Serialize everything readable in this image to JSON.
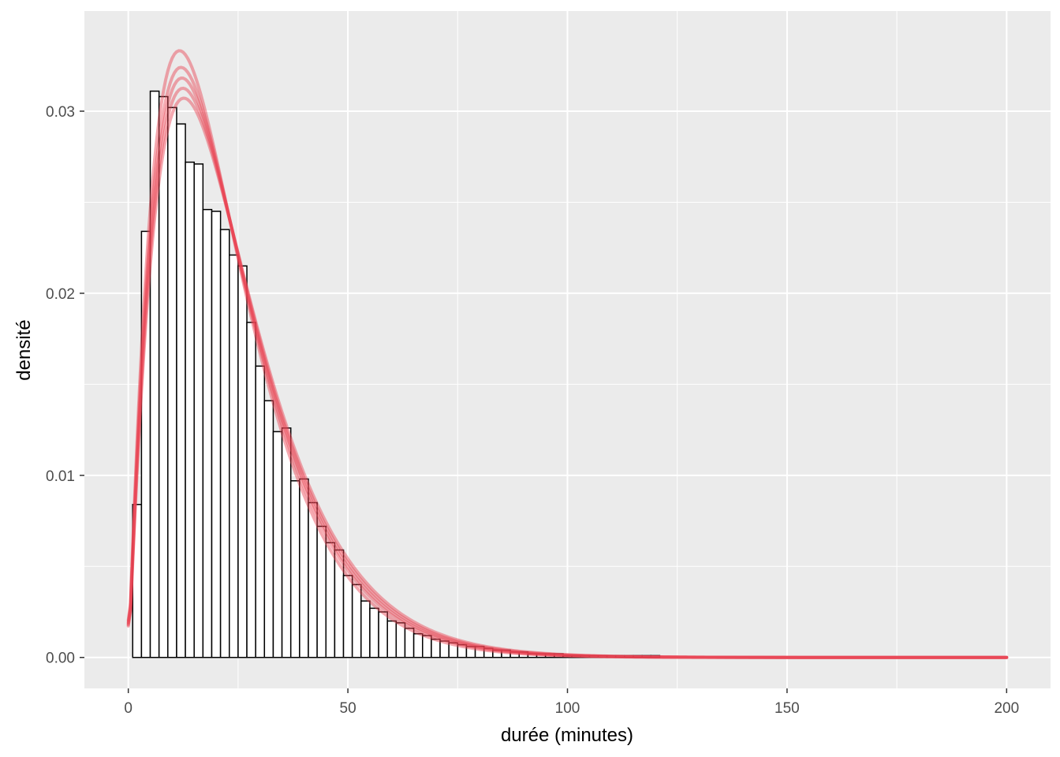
{
  "chart_data": {
    "type": "bar",
    "title": "",
    "xlabel": "durée (minutes)",
    "ylabel": "densité",
    "xlim": [
      -10,
      210
    ],
    "ylim": [
      -0.0017,
      0.0355
    ],
    "x_ticks": [
      0,
      50,
      100,
      150,
      200
    ],
    "x_tick_labels": [
      "0",
      "50",
      "100",
      "150",
      "200"
    ],
    "y_ticks": [
      0.0,
      0.01,
      0.02,
      0.03
    ],
    "y_tick_labels": [
      "0.00",
      "0.01",
      "0.02",
      "0.03"
    ],
    "x_minor_ticks": [
      25,
      75,
      125,
      175
    ],
    "y_minor_ticks": [
      0.005,
      0.015,
      0.025
    ],
    "grid": true,
    "legend": "none",
    "histogram": {
      "bin_width": 2,
      "bin_start": 1,
      "values": [
        0.0084,
        0.0234,
        0.0311,
        0.0308,
        0.0302,
        0.0293,
        0.0272,
        0.0271,
        0.0246,
        0.0245,
        0.0235,
        0.0221,
        0.0215,
        0.0184,
        0.016,
        0.0141,
        0.0124,
        0.0126,
        0.0097,
        0.0098,
        0.0085,
        0.0072,
        0.0063,
        0.0059,
        0.0045,
        0.004,
        0.0031,
        0.0027,
        0.0025,
        0.002,
        0.0019,
        0.0016,
        0.0013,
        0.0012,
        0.001,
        0.0009,
        0.0008,
        0.0007,
        0.0006,
        0.0006,
        0.0005,
        0.0004,
        0.0004,
        0.0003,
        0.0003,
        0.0002,
        0.0002,
        0.0002,
        0.0002,
        0.0001,
        0.0001,
        0.0001,
        0.0001,
        0.0001,
        0.0001,
        0.0001,
        0.0001,
        0.0001,
        0.0001,
        0.0001
      ],
      "fill": "#ffffff",
      "stroke": "#000000"
    },
    "density_curves": {
      "color": "#e8404f",
      "count": 5,
      "shape": 2.1,
      "scale_values": [
        10.6,
        10.9,
        11.1,
        11.3,
        11.5
      ],
      "x_range": [
        0,
        200
      ]
    },
    "colors": {
      "panel_background": "#ebebeb",
      "gridline": "#ffffff"
    }
  }
}
